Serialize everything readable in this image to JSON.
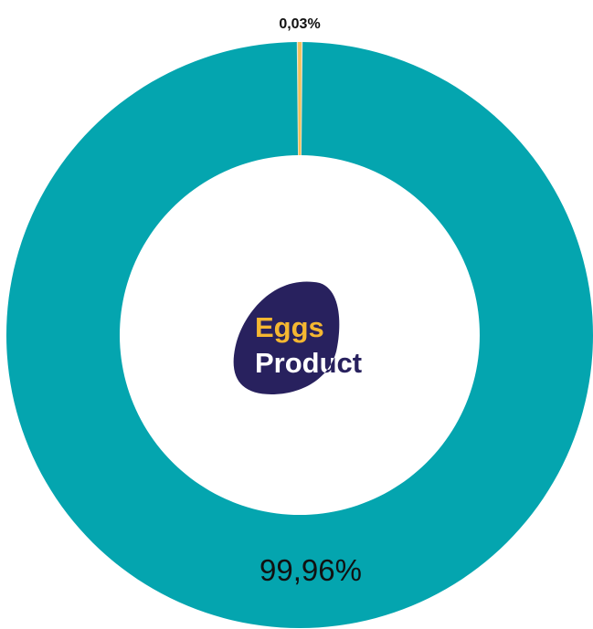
{
  "chart_data": {
    "type": "pie",
    "variant": "donut",
    "slices": [
      {
        "label": "99,96%",
        "value": 99.96,
        "color": "#04a5af"
      },
      {
        "label": "0,03%",
        "value": 0.03,
        "color": "#f4c15a"
      }
    ],
    "separator_color": "#e9e3cf",
    "center_logo": {
      "line1": "Eggs",
      "line2": "Product",
      "blob_color": "#28215e",
      "line1_color": "#f5b731",
      "line2_color": "#ffffff",
      "line2_overflow_color": "#28215e"
    },
    "legend": "none"
  }
}
